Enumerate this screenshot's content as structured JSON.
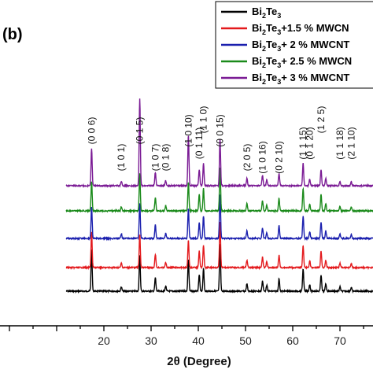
{
  "chart_data": {
    "type": "line",
    "panel_label": "(b)",
    "xlabel": "2θ (Degree)",
    "ylabel": "",
    "xlim": [
      -2,
      77
    ],
    "x_ticks": [
      20,
      30,
      40,
      50,
      60,
      70
    ],
    "grid": false,
    "legend_placement": "top-right",
    "series": [
      {
        "name": "Bi2Te3",
        "legend_parts": [
          "Bi",
          "2",
          "Te",
          "3",
          ""
        ],
        "color": "#000000"
      },
      {
        "name": "Bi2Te3+1.5 % MWCNT",
        "legend_parts": [
          "Bi",
          "2",
          "Te",
          "3",
          "+1.5 % MWCN"
        ],
        "color": "#e3191c"
      },
      {
        "name": "Bi2Te3+ 2 % MWCNT",
        "legend_parts": [
          "Bi",
          "2",
          "Te",
          "3",
          "+ 2 % MWCNT"
        ],
        "color": "#1a1fae"
      },
      {
        "name": "Bi2Te3+ 2.5 % MWCNT",
        "legend_parts": [
          "Bi",
          "2",
          "Te",
          "3",
          "+ 2.5 % MWCN"
        ],
        "color": "#1a8a1a"
      },
      {
        "name": "Bi2Te3+ 3 % MWCNT",
        "legend_parts": [
          "Bi",
          "2",
          "Te",
          "3",
          "+ 3 % MWCNT"
        ],
        "color": "#7a1a94"
      }
    ],
    "peaks": [
      {
        "x": 17.4,
        "h": 1.0
      },
      {
        "x": 23.7,
        "h": 0.06
      },
      {
        "x": 27.6,
        "h": 1.0
      },
      {
        "x": 30.9,
        "h": 0.18
      },
      {
        "x": 33.1,
        "h": 0.07
      },
      {
        "x": 37.9,
        "h": 1.0
      },
      {
        "x": 40.2,
        "h": 0.22
      },
      {
        "x": 41.1,
        "h": 0.3
      },
      {
        "x": 44.6,
        "h": 1.0
      },
      {
        "x": 50.3,
        "h": 0.1
      },
      {
        "x": 53.6,
        "h": 0.14
      },
      {
        "x": 54.5,
        "h": 0.08
      },
      {
        "x": 57.1,
        "h": 0.17
      },
      {
        "x": 62.2,
        "h": 0.3
      },
      {
        "x": 63.6,
        "h": 0.09
      },
      {
        "x": 66.0,
        "h": 0.22
      },
      {
        "x": 67.0,
        "h": 0.1
      },
      {
        "x": 70.0,
        "h": 0.06
      },
      {
        "x": 72.4,
        "h": 0.05
      }
    ],
    "peak_scale_per_series": [
      [
        52,
        45,
        40,
        42,
        60
      ],
      [
        45,
        42,
        35,
        40,
        58
      ],
      [
        40,
        45,
        38,
        40,
        57
      ],
      [
        38,
        48,
        36,
        38,
        55
      ],
      [
        47,
        110,
        65,
        68,
        60
      ]
    ],
    "annotations": [
      {
        "label": "(0 0 6)",
        "x": 17.4,
        "level": 0
      },
      {
        "label": "(1 0 1)",
        "x": 23.7,
        "level": 1
      },
      {
        "label": "(0 1 5)",
        "x": 27.6,
        "level": 0
      },
      {
        "label": "(1 0 7)",
        "x": 30.9,
        "level": 1
      },
      {
        "label": "(0 1 8)",
        "x": 33.1,
        "level": 1
      },
      {
        "label": "(1 0 10)",
        "x": 37.9,
        "level": 0
      },
      {
        "label": "(0 1 11)",
        "x": 40.2,
        "level": 2
      },
      {
        "label": "(1 1 0)",
        "x": 41.1,
        "level": 3
      },
      {
        "label": "(0 0 15)",
        "x": 44.6,
        "level": 0
      },
      {
        "label": "(2 0 5)",
        "x": 50.3,
        "level": 1
      },
      {
        "label": "(1 0 16)",
        "x": 53.6,
        "level": 1
      },
      {
        "label": "(0 2 10)",
        "x": 57.1,
        "level": 1
      },
      {
        "label": "(1 1 15)",
        "x": 62.2,
        "level": 2
      },
      {
        "label": "(0 1 20)",
        "x": 63.6,
        "level": 2
      },
      {
        "label": "(1 2 5)",
        "x": 66.0,
        "level": 3
      },
      {
        "label": "(1 1 18)",
        "x": 70.0,
        "level": 2
      },
      {
        "label": "(2 1 10)",
        "x": 72.4,
        "level": 2
      }
    ]
  }
}
